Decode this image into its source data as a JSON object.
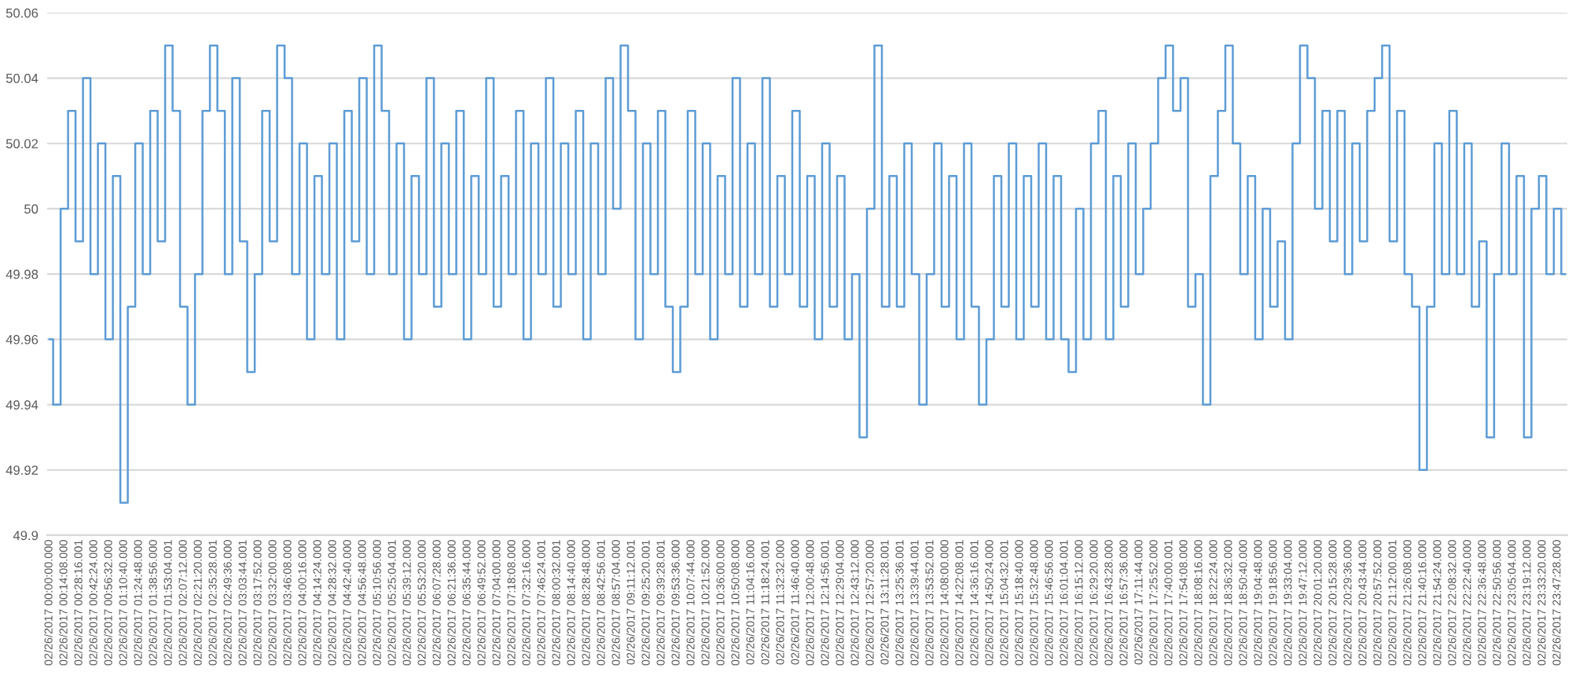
{
  "chart_data": {
    "type": "step",
    "color": "#5b9bd5",
    "categories": [
      "02/26/2017 00:00:00.000",
      null,
      "02/26/2017 00:14:08.000",
      null,
      "02/26/2017 00:28:16.001",
      null,
      "02/26/2017 00:42:24.000",
      null,
      "02/26/2017 00:56:32.000",
      null,
      "02/26/2017 01:10:40.000",
      null,
      "02/26/2017 01:24:48.000",
      null,
      "02/26/2017 01:38:56.000",
      null,
      "02/26/2017 01:53:04.001",
      null,
      "02/26/2017 02:07:12.000",
      null,
      "02/26/2017 02:21:20.000",
      null,
      "02/26/2017 02:35:28.001",
      null,
      "02/26/2017 02:49:36.000",
      null,
      "02/26/2017 03:03:44.001",
      null,
      "02/26/2017 03:17:52.000",
      null,
      "02/26/2017 03:32:00.000",
      null,
      "02/26/2017 03:46:08.000",
      null,
      "02/26/2017 04:00:16.000",
      null,
      "02/26/2017 04:14:24.000",
      null,
      "02/26/2017 04:28:32.000",
      null,
      "02/26/2017 04:42:40.000",
      null,
      "02/26/2017 04:56:48.000",
      null,
      "02/26/2017 05:10:56.000",
      null,
      "02/26/2017 05:25:04.001",
      null,
      "02/26/2017 05:39:12.000",
      null,
      "02/26/2017 05:53:20.000",
      null,
      "02/26/2017 06:07:28.000",
      null,
      "02/26/2017 06:21:36.000",
      null,
      "02/26/2017 06:35:44.000",
      null,
      "02/26/2017 06:49:52.000",
      null,
      "02/26/2017 07:04:00.000",
      null,
      "02/26/2017 07:18:08.000",
      null,
      "02/26/2017 07:32:16.000",
      null,
      "02/26/2017 07:46:24.001",
      null,
      "02/26/2017 08:00:32.001",
      null,
      "02/26/2017 08:14:40.000",
      null,
      "02/26/2017 08:28:48.000",
      null,
      "02/26/2017 08:42:56.001",
      null,
      "02/26/2017 08:57:04.000",
      null,
      "02/26/2017 09:11:12.001",
      null,
      "02/26/2017 09:25:20.001",
      null,
      "02/26/2017 09:39:28.001",
      null,
      "02/26/2017 09:53:36.000",
      null,
      "02/26/2017 10:07:44.000",
      null,
      "02/26/2017 10:21:52.000",
      null,
      "02/26/2017 10:36:00.000",
      null,
      "02/26/2017 10:50:08.000",
      null,
      "02/26/2017 11:04:16.000",
      null,
      "02/26/2017 11:18:24.001",
      null,
      "02/26/2017 11:32:32.000",
      null,
      "02/26/2017 11:46:40.000",
      null,
      "02/26/2017 12:00:48.000",
      null,
      "02/26/2017 12:14:56.001",
      null,
      "02/26/2017 12:29:04.000",
      null,
      "02/26/2017 12:43:12.000",
      null,
      "02/26/2017 12:57:20.000",
      null,
      "02/26/2017 13:11:28.001",
      null,
      "02/26/2017 13:25:36.001",
      null,
      "02/26/2017 13:39:44.001",
      null,
      "02/26/2017 13:53:52.001",
      null,
      "02/26/2017 14:08:00.000",
      null,
      "02/26/2017 14:22:08.001",
      null,
      "02/26/2017 14:36:16.001",
      null,
      "02/26/2017 14:50:24.000",
      null,
      "02/26/2017 15:04:32.001",
      null,
      "02/26/2017 15:18:40.000",
      null,
      "02/26/2017 15:32:48.000",
      null,
      "02/26/2017 15:46:56.000",
      null,
      "02/26/2017 16:01:04.001",
      null,
      "02/26/2017 16:15:12.000",
      null,
      "02/26/2017 16:29:20.000",
      null,
      "02/26/2017 16:43:28.000",
      null,
      "02/26/2017 16:57:36.000",
      null,
      "02/26/2017 17:11:44.000",
      null,
      "02/26/2017 17:25:52.000",
      null,
      "02/26/2017 17:40:00.001",
      null,
      "02/26/2017 17:54:08.000",
      null,
      "02/26/2017 18:08:16.000",
      null,
      "02/26/2017 18:22:24.000",
      null,
      "02/26/2017 18:36:32.000",
      null,
      "02/26/2017 18:50:40.000",
      null,
      "02/26/2017 19:04:48.000",
      null,
      "02/26/2017 19:18:56.000",
      null,
      "02/26/2017 19:33:04.000",
      null,
      "02/26/2017 19:47:12.000",
      null,
      "02/26/2017 20:01:20.000",
      null,
      "02/26/2017 20:15:28.000",
      null,
      "02/26/2017 20:29:36.000",
      null,
      "02/26/2017 20:43:44.000",
      null,
      "02/26/2017 20:57:52.000",
      null,
      "02/26/2017 21:12:00.001",
      null,
      "02/26/2017 21:26:08.000",
      null,
      "02/26/2017 21:40:16.000",
      null,
      "02/26/2017 21:54:24.000",
      null,
      "02/26/2017 22:08:32.000",
      null,
      "02/26/2017 22:22:40.000",
      null,
      "02/26/2017 22:36:48.000",
      null,
      "02/26/2017 22:50:56.000",
      null,
      "02/26/2017 23:05:04.000",
      null,
      "02/26/2017 23:19:12.000",
      null,
      "02/26/2017 23:33:20.000",
      null,
      "02/26/2017 23:47:28.000",
      null
    ],
    "values": [
      49.96,
      49.94,
      50.0,
      50.03,
      49.99,
      50.04,
      49.98,
      50.02,
      49.96,
      50.01,
      49.91,
      49.97,
      50.02,
      49.98,
      50.03,
      49.99,
      50.05,
      50.03,
      49.97,
      49.94,
      49.98,
      50.03,
      50.05,
      50.03,
      49.98,
      50.04,
      49.99,
      49.95,
      49.98,
      50.03,
      49.99,
      50.05,
      50.04,
      49.98,
      50.02,
      49.96,
      50.01,
      49.98,
      50.02,
      49.96,
      50.03,
      49.99,
      50.04,
      49.98,
      50.05,
      50.03,
      49.98,
      50.02,
      49.96,
      50.01,
      49.98,
      50.04,
      49.97,
      50.02,
      49.98,
      50.03,
      49.96,
      50.01,
      49.98,
      50.04,
      49.97,
      50.01,
      49.98,
      50.03,
      49.96,
      50.02,
      49.98,
      50.04,
      49.97,
      50.02,
      49.98,
      50.03,
      49.96,
      50.02,
      49.98,
      50.04,
      50.0,
      50.05,
      50.03,
      49.96,
      50.02,
      49.98,
      50.03,
      49.97,
      49.95,
      49.97,
      50.03,
      49.98,
      50.02,
      49.96,
      50.01,
      49.98,
      50.04,
      49.97,
      50.02,
      49.98,
      50.04,
      49.97,
      50.01,
      49.98,
      50.03,
      49.97,
      50.01,
      49.96,
      50.02,
      49.97,
      50.01,
      49.96,
      49.98,
      49.93,
      50.0,
      50.05,
      49.97,
      50.01,
      49.97,
      50.02,
      49.98,
      49.94,
      49.98,
      50.02,
      49.97,
      50.01,
      49.96,
      50.02,
      49.97,
      49.94,
      49.96,
      50.01,
      49.97,
      50.02,
      49.96,
      50.01,
      49.97,
      50.02,
      49.96,
      50.01,
      49.96,
      49.95,
      50.0,
      49.96,
      50.02,
      50.03,
      49.96,
      50.01,
      49.97,
      50.02,
      49.98,
      50.0,
      50.02,
      50.04,
      50.05,
      50.03,
      50.04,
      49.97,
      49.98,
      49.94,
      50.01,
      50.03,
      50.05,
      50.02,
      49.98,
      50.01,
      49.96,
      50.0,
      49.97,
      49.99,
      49.96,
      50.02,
      50.05,
      50.04,
      50.0,
      50.03,
      49.99,
      50.03,
      49.98,
      50.02,
      49.99,
      50.03,
      50.04,
      50.05,
      49.99,
      50.03,
      49.98,
      49.97,
      49.92,
      49.97,
      50.02,
      49.98,
      50.03,
      49.98,
      50.02,
      49.97,
      49.99,
      49.93,
      49.98,
      50.02,
      49.98,
      50.01,
      49.93,
      50.0,
      50.01,
      49.98,
      50.0,
      49.98
    ],
    "ylim": [
      49.9,
      50.06
    ],
    "yticks": [
      49.9,
      49.92,
      49.94,
      49.96,
      49.98,
      50,
      50.02,
      50.04,
      50.06
    ],
    "grid": "y"
  }
}
